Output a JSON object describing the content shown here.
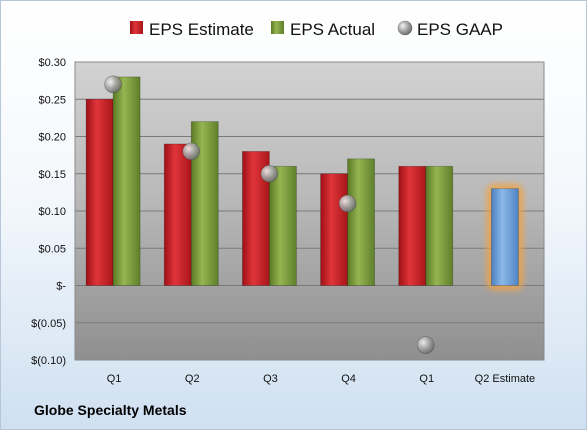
{
  "chart_data": {
    "type": "bar",
    "categories": [
      "Q1",
      "Q2",
      "Q3",
      "Q4",
      "Q1",
      "Q2 Estimate"
    ],
    "series": [
      {
        "name": "EPS Estimate",
        "kind": "bar",
        "color": "#cc2127",
        "values": [
          0.25,
          0.19,
          0.18,
          0.15,
          0.16,
          null
        ]
      },
      {
        "name": "EPS Actual",
        "kind": "bar",
        "color": "#7a9a3a",
        "values": [
          0.28,
          0.22,
          0.16,
          0.17,
          0.16,
          null
        ]
      },
      {
        "name": "EPS GAAP",
        "kind": "marker",
        "color": "#9a9a9a",
        "values": [
          0.27,
          0.18,
          0.15,
          0.11,
          -0.08,
          null
        ]
      },
      {
        "name": "",
        "kind": "bar",
        "highlight": true,
        "color": "#6a9fd8",
        "values": [
          null,
          null,
          null,
          null,
          null,
          0.13
        ]
      }
    ],
    "y_ticks": [
      {
        "value": 0.3,
        "label": "$0.30"
      },
      {
        "value": 0.25,
        "label": "$0.25"
      },
      {
        "value": 0.2,
        "label": "$0.20"
      },
      {
        "value": 0.15,
        "label": "$0.15"
      },
      {
        "value": 0.1,
        "label": "$0.10"
      },
      {
        "value": 0.05,
        "label": "$0.05"
      },
      {
        "value": 0.0,
        "label": "$-"
      },
      {
        "value": -0.05,
        "label": "$(0.05)"
      },
      {
        "value": -0.1,
        "label": "$(0.10)"
      }
    ],
    "ylim": [
      -0.1,
      0.3
    ],
    "grid": true,
    "legend_position": "top",
    "title": "",
    "xlabel": "",
    "ylabel": ""
  },
  "company_name": "Globe Specialty Metals"
}
